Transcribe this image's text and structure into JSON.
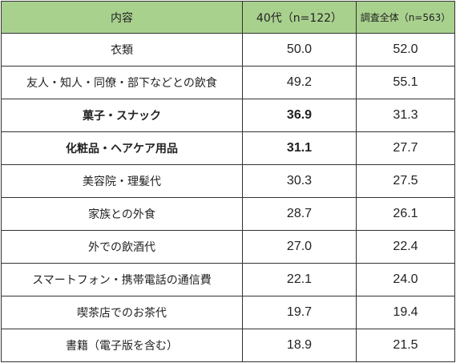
{
  "table": {
    "headers": {
      "item": "内容",
      "forties": "40代（n=122）",
      "total": "調査全体（n=563）"
    },
    "rows": [
      {
        "item": "衣類",
        "forties": "50.0",
        "total": "52.0",
        "bold": false
      },
      {
        "item": "友人・知人・同僚・部下などとの飲食",
        "forties": "49.2",
        "total": "55.1",
        "bold": false
      },
      {
        "item": "菓子・スナック",
        "forties": "36.9",
        "total": "31.3",
        "bold": true
      },
      {
        "item": "化粧品・ヘアケア用品",
        "forties": "31.1",
        "total": "27.7",
        "bold": true
      },
      {
        "item": "美容院・理髪代",
        "forties": "30.3",
        "total": "27.5",
        "bold": false
      },
      {
        "item": "家族との外食",
        "forties": "28.7",
        "total": "26.1",
        "bold": false
      },
      {
        "item": "外での飲酒代",
        "forties": "27.0",
        "total": "22.4",
        "bold": false
      },
      {
        "item": "スマートフォン・携帯電話の通信費",
        "forties": "22.1",
        "total": "24.0",
        "bold": false
      },
      {
        "item": "喫茶店でのお茶代",
        "forties": "19.7",
        "total": "19.4",
        "bold": false
      },
      {
        "item": "書籍（電子版を含む）",
        "forties": "18.9",
        "total": "21.5",
        "bold": false
      }
    ]
  },
  "colors": {
    "header_bg": "#a9d18e",
    "border": "#333333"
  }
}
